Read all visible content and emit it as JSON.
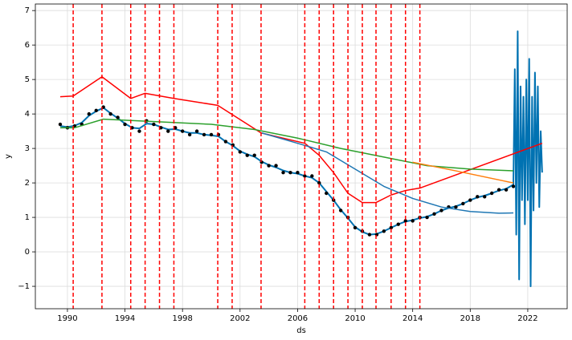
{
  "chart_data": {
    "type": "line",
    "xlabel": "ds",
    "ylabel": "y",
    "xlim": [
      1987.77,
      2024.74
    ],
    "ylim": [
      -1.65,
      7.19
    ],
    "xticks": [
      1990,
      1994,
      1998,
      2002,
      2006,
      2010,
      2014,
      2018,
      2022
    ],
    "yticks": [
      {
        "value": -1,
        "label": "−1"
      },
      0,
      1,
      2,
      3,
      4,
      5,
      6,
      7
    ],
    "grid": true,
    "changepoint_color": "#ff0000",
    "changepoints": [
      1990.4,
      1992.4,
      1994.4,
      1995.4,
      1996.4,
      1997.4,
      2000.45,
      2001.45,
      2003.46,
      2006.5,
      2007.5,
      2008.5,
      2009.5,
      2010.5,
      2011.45,
      2012.5,
      2013.5,
      2014.5
    ],
    "series": [
      {
        "style": "line",
        "color": "#0072b2",
        "x": [
          1989.5,
          1990,
          1990.5,
          1991,
          1991.5,
          1992,
          1992.5,
          1993,
          1993.5,
          1994,
          1994.5,
          1995,
          1995.5,
          1996,
          1996.5,
          1997,
          1997.5,
          1998,
          1998.5,
          1999,
          1999.5,
          2000,
          2000.5,
          2001,
          2001.5,
          2002,
          2002.5,
          2003,
          2003.5,
          2004,
          2004.5,
          2005,
          2005.5,
          2006,
          2006.5,
          2007,
          2007.5,
          2008,
          2008.5,
          2009,
          2009.5,
          2010,
          2010.5,
          2011,
          2011.5,
          2012,
          2012.5,
          2013,
          2013.5,
          2014,
          2014.5,
          2015,
          2015.5,
          2016,
          2016.5,
          2017,
          2017.5,
          2018,
          2018.5,
          2019,
          2019.5,
          2020,
          2020.5,
          2021,
          2021.1,
          2021.2,
          2021.3,
          2021.4,
          2021.5,
          2021.6,
          2021.7,
          2021.8,
          2021.9,
          2022,
          2022.1,
          2022.2,
          2022.3,
          2022.4,
          2022.5,
          2022.6,
          2022.7,
          2022.8,
          2022.9,
          2023
        ],
        "values": [
          3.65,
          3.62,
          3.66,
          3.75,
          3.95,
          4.08,
          4.18,
          4.02,
          3.88,
          3.72,
          3.6,
          3.58,
          3.72,
          3.7,
          3.62,
          3.55,
          3.56,
          3.5,
          3.45,
          3.45,
          3.4,
          3.38,
          3.35,
          3.2,
          3.08,
          2.92,
          2.83,
          2.76,
          2.62,
          2.52,
          2.45,
          2.36,
          2.3,
          2.27,
          2.2,
          2.15,
          2.0,
          1.75,
          1.5,
          1.22,
          0.98,
          0.72,
          0.58,
          0.5,
          0.52,
          0.6,
          0.7,
          0.8,
          0.88,
          0.92,
          0.98,
          1.02,
          1.1,
          1.2,
          1.27,
          1.32,
          1.4,
          1.5,
          1.58,
          1.63,
          1.7,
          1.78,
          1.83,
          1.95,
          5.3,
          0.5,
          6.4,
          -0.8,
          4.8,
          1.5,
          4.5,
          0.8,
          5.0,
          1.5,
          5.6,
          -1.0,
          4.5,
          1.2,
          5.2,
          2.0,
          4.8,
          1.3,
          3.5,
          2.3
        ]
      },
      {
        "style": "scatter",
        "color": "#000000",
        "x": [
          1989.5,
          1990,
          1990.5,
          1991,
          1991.5,
          1992,
          1992.5,
          1993,
          1993.5,
          1994,
          1994.5,
          1995,
          1995.5,
          1996,
          1996.5,
          1997,
          1997.5,
          1998,
          1998.5,
          1999,
          1999.5,
          2000,
          2000.5,
          2001,
          2001.5,
          2002,
          2002.5,
          2003,
          2003.5,
          2004,
          2004.5,
          2005,
          2005.5,
          2006,
          2006.5,
          2007,
          2007.5,
          2008,
          2008.5,
          2009,
          2009.5,
          2010,
          2010.5,
          2011,
          2011.5,
          2012,
          2012.5,
          2013,
          2013.5,
          2014,
          2014.5,
          2015,
          2015.5,
          2016,
          2016.5,
          2017,
          2017.5,
          2018,
          2018.5,
          2019,
          2019.5,
          2020,
          2020.5,
          2021
        ],
        "values": [
          3.7,
          3.6,
          3.65,
          3.7,
          4.0,
          4.1,
          4.2,
          4.0,
          3.9,
          3.7,
          3.6,
          3.5,
          3.8,
          3.7,
          3.6,
          3.5,
          3.6,
          3.5,
          3.4,
          3.5,
          3.4,
          3.4,
          3.4,
          3.2,
          3.1,
          2.9,
          2.8,
          2.8,
          2.6,
          2.5,
          2.5,
          2.3,
          2.3,
          2.3,
          2.2,
          2.2,
          2.0,
          1.7,
          1.5,
          1.2,
          1.0,
          0.7,
          0.6,
          0.5,
          0.5,
          0.6,
          0.7,
          0.8,
          0.9,
          0.9,
          1.0,
          1.0,
          1.1,
          1.2,
          1.3,
          1.3,
          1.4,
          1.5,
          1.6,
          1.6,
          1.7,
          1.8,
          1.8,
          1.9
        ]
      },
      {
        "style": "line",
        "color": "#ff0000",
        "x": [
          1989.5,
          1990.4,
          1992.4,
          1994.4,
          1995.4,
          1997.4,
          2000.45,
          2003.46,
          2006.5,
          2007.5,
          2008.5,
          2009.5,
          2010.5,
          2011.45,
          2012.5,
          2013.5,
          2014.5,
          2023
        ],
        "values": [
          4.5,
          4.52,
          5.08,
          4.45,
          4.6,
          4.45,
          4.25,
          3.45,
          3.15,
          2.8,
          2.3,
          1.7,
          1.43,
          1.43,
          1.65,
          1.78,
          1.85,
          3.15
        ]
      },
      {
        "style": "line",
        "color": "#2ca02c",
        "x": [
          1989.5,
          1990.5,
          1992.5,
          1995,
          2000,
          2003,
          2006,
          2009,
          2012,
          2015,
          2018,
          2021
        ],
        "values": [
          3.6,
          3.6,
          3.85,
          3.8,
          3.7,
          3.55,
          3.3,
          3.0,
          2.75,
          2.5,
          2.4,
          2.35
        ]
      },
      {
        "style": "line",
        "color": "#ff7f0e",
        "x": [
          2014,
          2017,
          2021
        ],
        "values": [
          2.6,
          2.35,
          2.0
        ]
      },
      {
        "style": "line",
        "color": "#1f77b4",
        "x": [
          2003.5,
          2006,
          2008,
          2010,
          2012,
          2014,
          2016,
          2018,
          2020,
          2021
        ],
        "values": [
          3.45,
          3.15,
          2.9,
          2.4,
          1.9,
          1.55,
          1.3,
          1.17,
          1.12,
          1.13
        ]
      }
    ]
  }
}
